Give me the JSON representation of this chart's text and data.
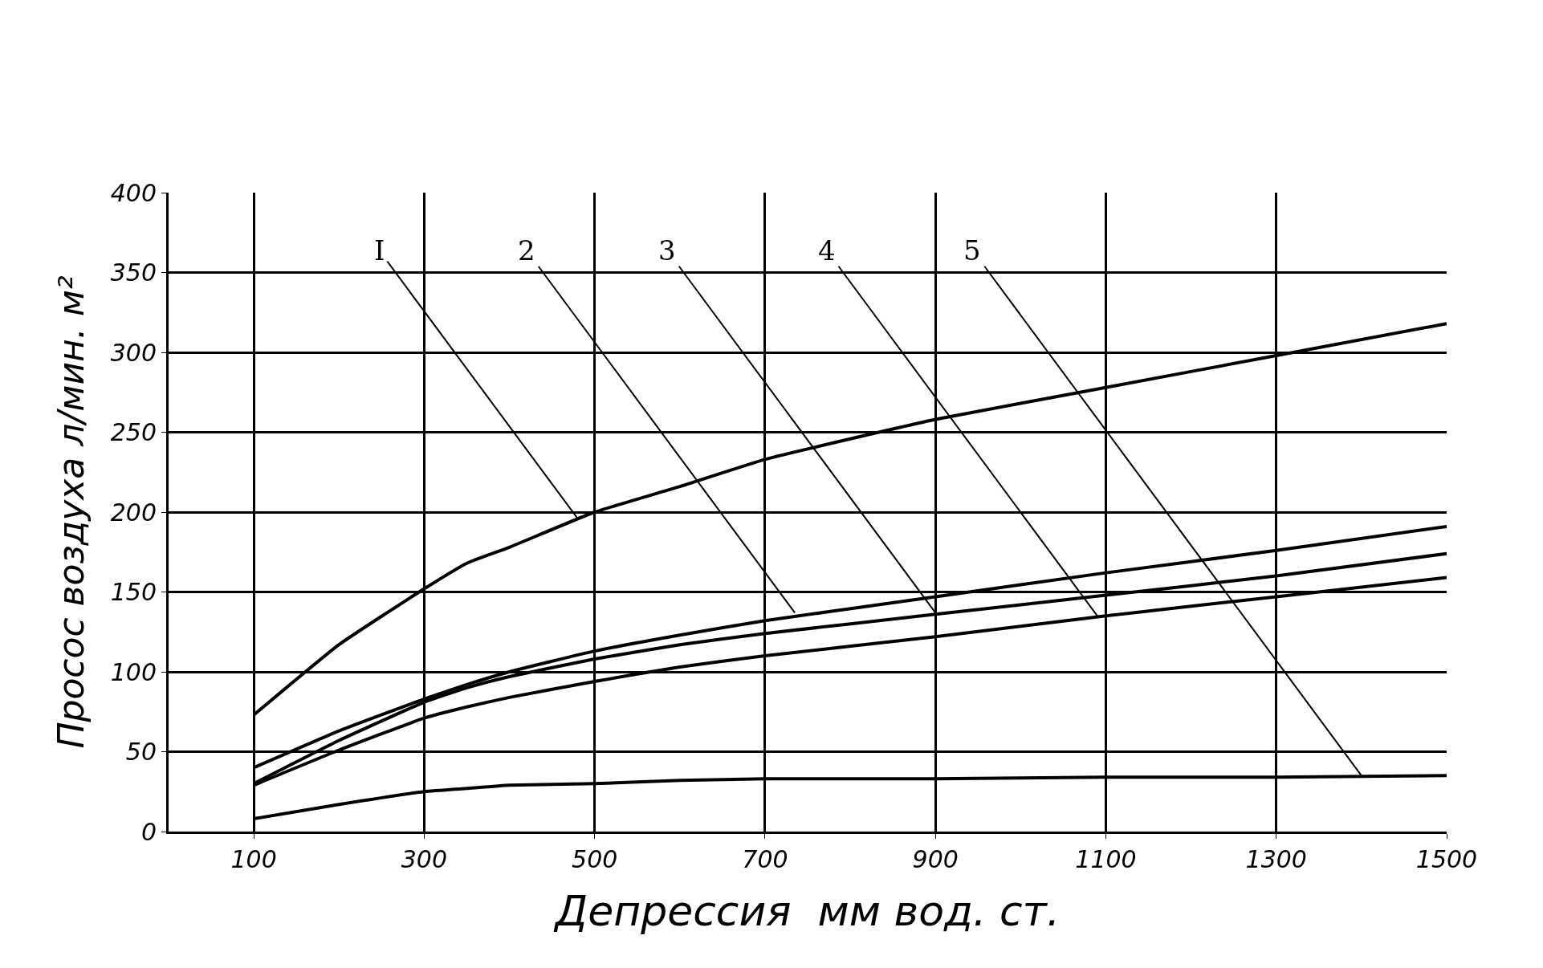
{
  "chart_data": {
    "type": "line",
    "xlabel": "Депрессия  мм вод. ст.",
    "ylabel": "Просос воздуха л/мин. м²",
    "x": [
      100,
      200,
      300,
      350,
      400,
      500,
      600,
      700,
      900,
      1100,
      1300,
      1500
    ],
    "series": [
      {
        "color": "#000000",
        "values": [
          73,
          117,
          152,
          168,
          178,
          200,
          216,
          233,
          258,
          278,
          298,
          318
        ]
      },
      {
        "color": "#000000",
        "values": [
          40,
          63,
          83,
          92,
          100,
          113,
          123,
          132,
          147,
          162,
          176,
          191
        ]
      },
      {
        "color": "#000000",
        "values": [
          30,
          57,
          81,
          90,
          97,
          108,
          117,
          124,
          136,
          148,
          160,
          174
        ]
      },
      {
        "color": "#000000",
        "values": [
          29,
          51,
          71,
          78,
          84,
          94,
          103,
          110,
          122,
          135,
          147,
          159
        ]
      },
      {
        "color": "#000000",
        "values": [
          8,
          17,
          25,
          27,
          29,
          30,
          32,
          33,
          33,
          34,
          34,
          35
        ]
      }
    ],
    "annotations": [
      {
        "text": "I",
        "x": 480,
        "y": 196
      },
      {
        "text": "2",
        "x": 735,
        "y": 137
      },
      {
        "text": "3",
        "x": 900,
        "y": 137
      },
      {
        "text": "4",
        "x": 1090,
        "y": 135
      },
      {
        "text": "5",
        "x": 1400,
        "y": 35
      }
    ],
    "xlim": [
      0,
      1500
    ],
    "xticks": [
      100,
      300,
      500,
      700,
      900,
      1100,
      1300,
      1500
    ],
    "ylim": [
      0,
      400
    ],
    "yticks": [
      0,
      50,
      100,
      150,
      200,
      250,
      300,
      350,
      400
    ],
    "grid": true,
    "marker": "none",
    "line_style": "solid"
  }
}
